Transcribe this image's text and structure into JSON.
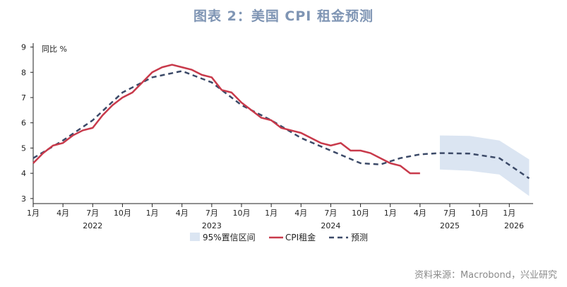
{
  "page": {
    "title": "图表 2：美国 CPI 租金预测",
    "source": "资料来源：Macrobond，兴业研究"
  },
  "chart_data": {
    "type": "line",
    "title": "图表 2：美国 CPI 租金预测",
    "ylabel": "同比 %",
    "ylim": [
      2.8,
      9.1
    ],
    "yticks": [
      3,
      4,
      5,
      6,
      7,
      8,
      9
    ],
    "xlim": [
      2022.0,
      2026.2
    ],
    "xtick_labels": [
      "1月",
      "4月",
      "7月",
      "10月",
      "1月",
      "4月",
      "7月",
      "10月",
      "1月",
      "4月",
      "7月",
      "10月",
      "1月",
      "4月",
      "7月",
      "10月",
      "1月"
    ],
    "year_labels": [
      "2022",
      "2023",
      "2024",
      "2025",
      "2026"
    ],
    "legend": [
      "95%置信区间",
      "CPI租金",
      "预测"
    ],
    "colors": {
      "actual": "#c83a4b",
      "forecast": "#3c4a68",
      "band": "#dbe5f2"
    },
    "series": [
      {
        "name": "CPI租金",
        "x": [
          "2022-01",
          "2022-02",
          "2022-03",
          "2022-04",
          "2022-05",
          "2022-06",
          "2022-07",
          "2022-08",
          "2022-09",
          "2022-10",
          "2022-11",
          "2022-12",
          "2023-01",
          "2023-02",
          "2023-03",
          "2023-04",
          "2023-05",
          "2023-06",
          "2023-07",
          "2023-08",
          "2023-09",
          "2023-10",
          "2023-11",
          "2023-12",
          "2024-01",
          "2024-02",
          "2024-03",
          "2024-04",
          "2024-05",
          "2024-06",
          "2024-07",
          "2024-08",
          "2024-09",
          "2024-10",
          "2024-11",
          "2024-12",
          "2025-01",
          "2025-02",
          "2025-03",
          "2025-04"
        ],
        "values": [
          4.4,
          4.8,
          5.1,
          5.2,
          5.5,
          5.7,
          5.8,
          6.3,
          6.7,
          7.0,
          7.2,
          7.6,
          8.0,
          8.2,
          8.3,
          8.2,
          8.1,
          7.9,
          7.8,
          7.3,
          7.2,
          6.8,
          6.5,
          6.2,
          6.1,
          5.8,
          5.7,
          5.6,
          5.4,
          5.2,
          5.1,
          5.2,
          4.9,
          4.9,
          4.8,
          4.6,
          4.4,
          4.3,
          4.0,
          4.0
        ]
      },
      {
        "name": "预测",
        "x": [
          "2022-01",
          "2022-04",
          "2022-07",
          "2022-10",
          "2023-01",
          "2023-04",
          "2023-07",
          "2023-10",
          "2024-01",
          "2024-04",
          "2024-07",
          "2024-10",
          "2024-12",
          "2025-02",
          "2025-04",
          "2025-06",
          "2025-09",
          "2025-12",
          "2026-03"
        ],
        "values": [
          4.6,
          5.3,
          6.1,
          7.2,
          7.8,
          8.05,
          7.6,
          6.7,
          6.1,
          5.4,
          4.9,
          4.4,
          4.35,
          4.6,
          4.75,
          4.8,
          4.78,
          4.6,
          3.8
        ]
      }
    ],
    "confidence_band": {
      "name": "95%置信区间",
      "x": [
        "2025-06",
        "2025-09",
        "2025-12",
        "2026-03"
      ],
      "upper": [
        5.5,
        5.48,
        5.3,
        4.55
      ],
      "lower": [
        4.15,
        4.1,
        3.95,
        3.1
      ]
    }
  }
}
